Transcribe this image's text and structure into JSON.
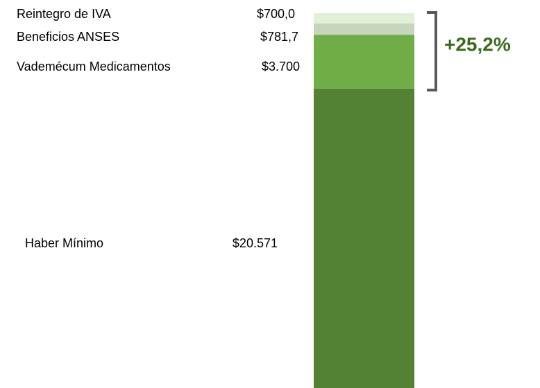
{
  "chart_data": {
    "type": "stacked_bar",
    "series": [
      {
        "name": "Haber Mínimo",
        "color": "#548235",
        "values": [
          20571
        ],
        "value_labels": [
          "$20.571"
        ]
      },
      {
        "name": "Vademécum Medicamentos",
        "color": "#70ad47",
        "values": [
          3700
        ],
        "value_labels": [
          "$3.700"
        ]
      },
      {
        "name": "Beneficios ANSES",
        "color": "#c5d6bd",
        "values": [
          781.7
        ],
        "value_labels": [
          "$781,7"
        ]
      },
      {
        "name": "Reintegro de IVA",
        "color": "#e2efd9",
        "values": [
          700
        ],
        "value_labels": [
          "$700,0"
        ]
      }
    ],
    "annotation": "+25,2%"
  }
}
